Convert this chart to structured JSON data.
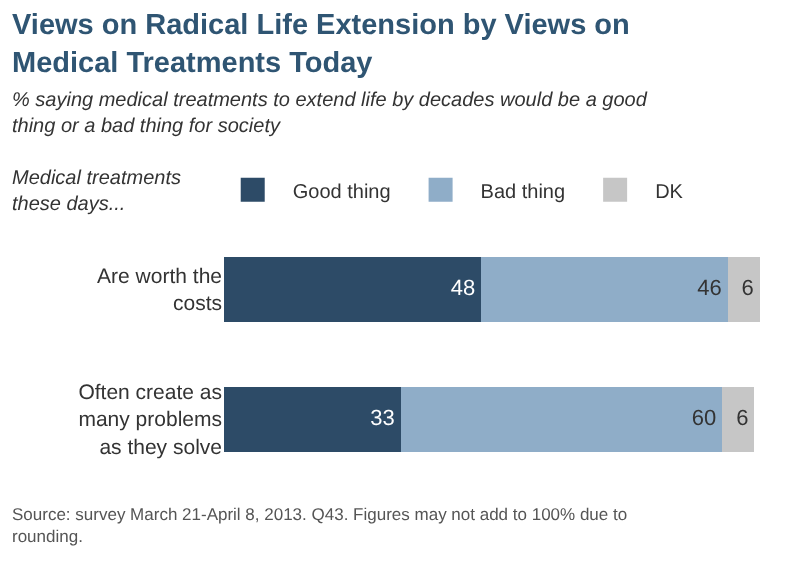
{
  "chart_data": {
    "type": "bar",
    "orientation": "horizontal",
    "stacked": true,
    "title": "Views on Radical Life Extension by Views on Medical Treatments Today",
    "subtitle": "% saying medical treatments to extend life by decades would be a good thing or a bad thing for society",
    "legend_title": "Medical treatments these days...",
    "categories": [
      "Are worth the costs",
      "Often create as many problems as they solve"
    ],
    "series": [
      {
        "name": "Good thing",
        "color": "#2d4b67",
        "values": [
          48,
          33
        ]
      },
      {
        "name": "Bad thing",
        "color": "#8fadc8",
        "values": [
          46,
          60
        ]
      },
      {
        "name": "DK",
        "color": "#c6c6c6",
        "values": [
          6,
          6
        ]
      }
    ],
    "data_labels": true,
    "legend": "top",
    "annotations": [
      "Source: survey March 21-April 8, 2013. Q43. Figures may not add to 100% due to rounding."
    ]
  }
}
